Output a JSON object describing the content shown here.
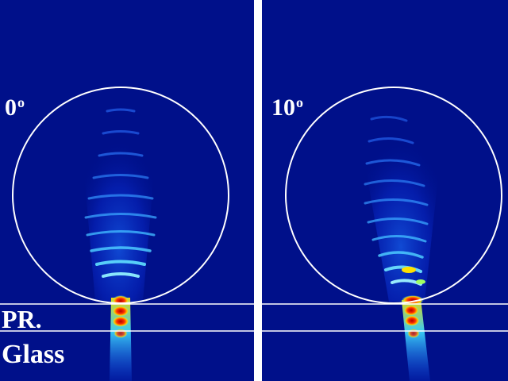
{
  "panels": [
    {
      "id": "left",
      "angle": "0",
      "angle_unit": "o"
    },
    {
      "id": "right",
      "angle": "10",
      "angle_unit": "o"
    }
  ],
  "layers": {
    "photoresist": "PR.",
    "substrate": "Glass"
  },
  "colors": {
    "background": "#00108a",
    "outline": "#ffffff",
    "field_low": "#0020d0",
    "field_mid": "#00c8ff",
    "field_high": "#ffe000",
    "field_peak": "#c01000"
  }
}
